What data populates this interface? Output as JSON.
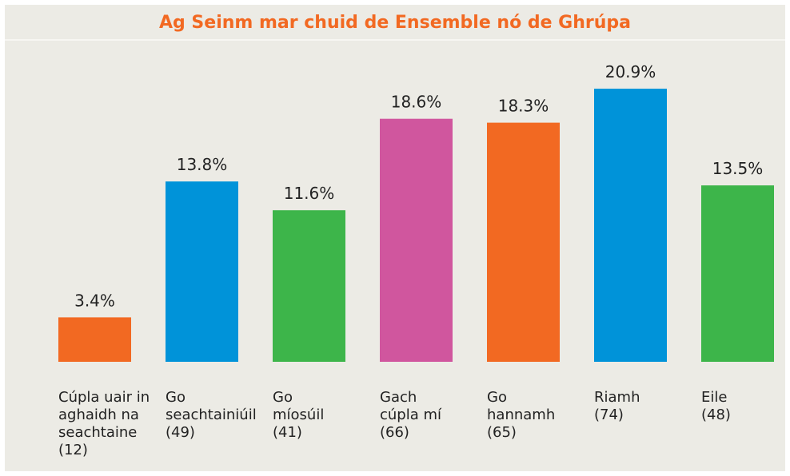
{
  "chart_data": {
    "type": "bar",
    "title": "Ag Seinm mar chuid de Ensemble nó de Ghrúpa",
    "categories": [
      [
        "Cúpla uair in",
        "aghaidh na",
        "seachtaine",
        "(12)"
      ],
      [
        "Go",
        "seachtainiúil",
        "(49)"
      ],
      [
        "Go",
        "míosúil",
        "(41)"
      ],
      [
        "Gach",
        "cúpla mí",
        "(66)"
      ],
      [
        "Go",
        "hannamh",
        "(65)"
      ],
      [
        "Riamh",
        "(74)"
      ],
      [
        "Eile",
        "(48)"
      ]
    ],
    "values": [
      3.4,
      13.8,
      11.6,
      18.6,
      18.3,
      20.9,
      13.5
    ],
    "value_labels": [
      "3.4%",
      "13.8%",
      "11.6%",
      "18.6%",
      "18.3%",
      "20.9%",
      "13.5%"
    ],
    "colors": [
      "#f26922",
      "#0093d9",
      "#3db54a",
      "#d0569e",
      "#f26922",
      "#0093d9",
      "#3db54a"
    ]
  }
}
